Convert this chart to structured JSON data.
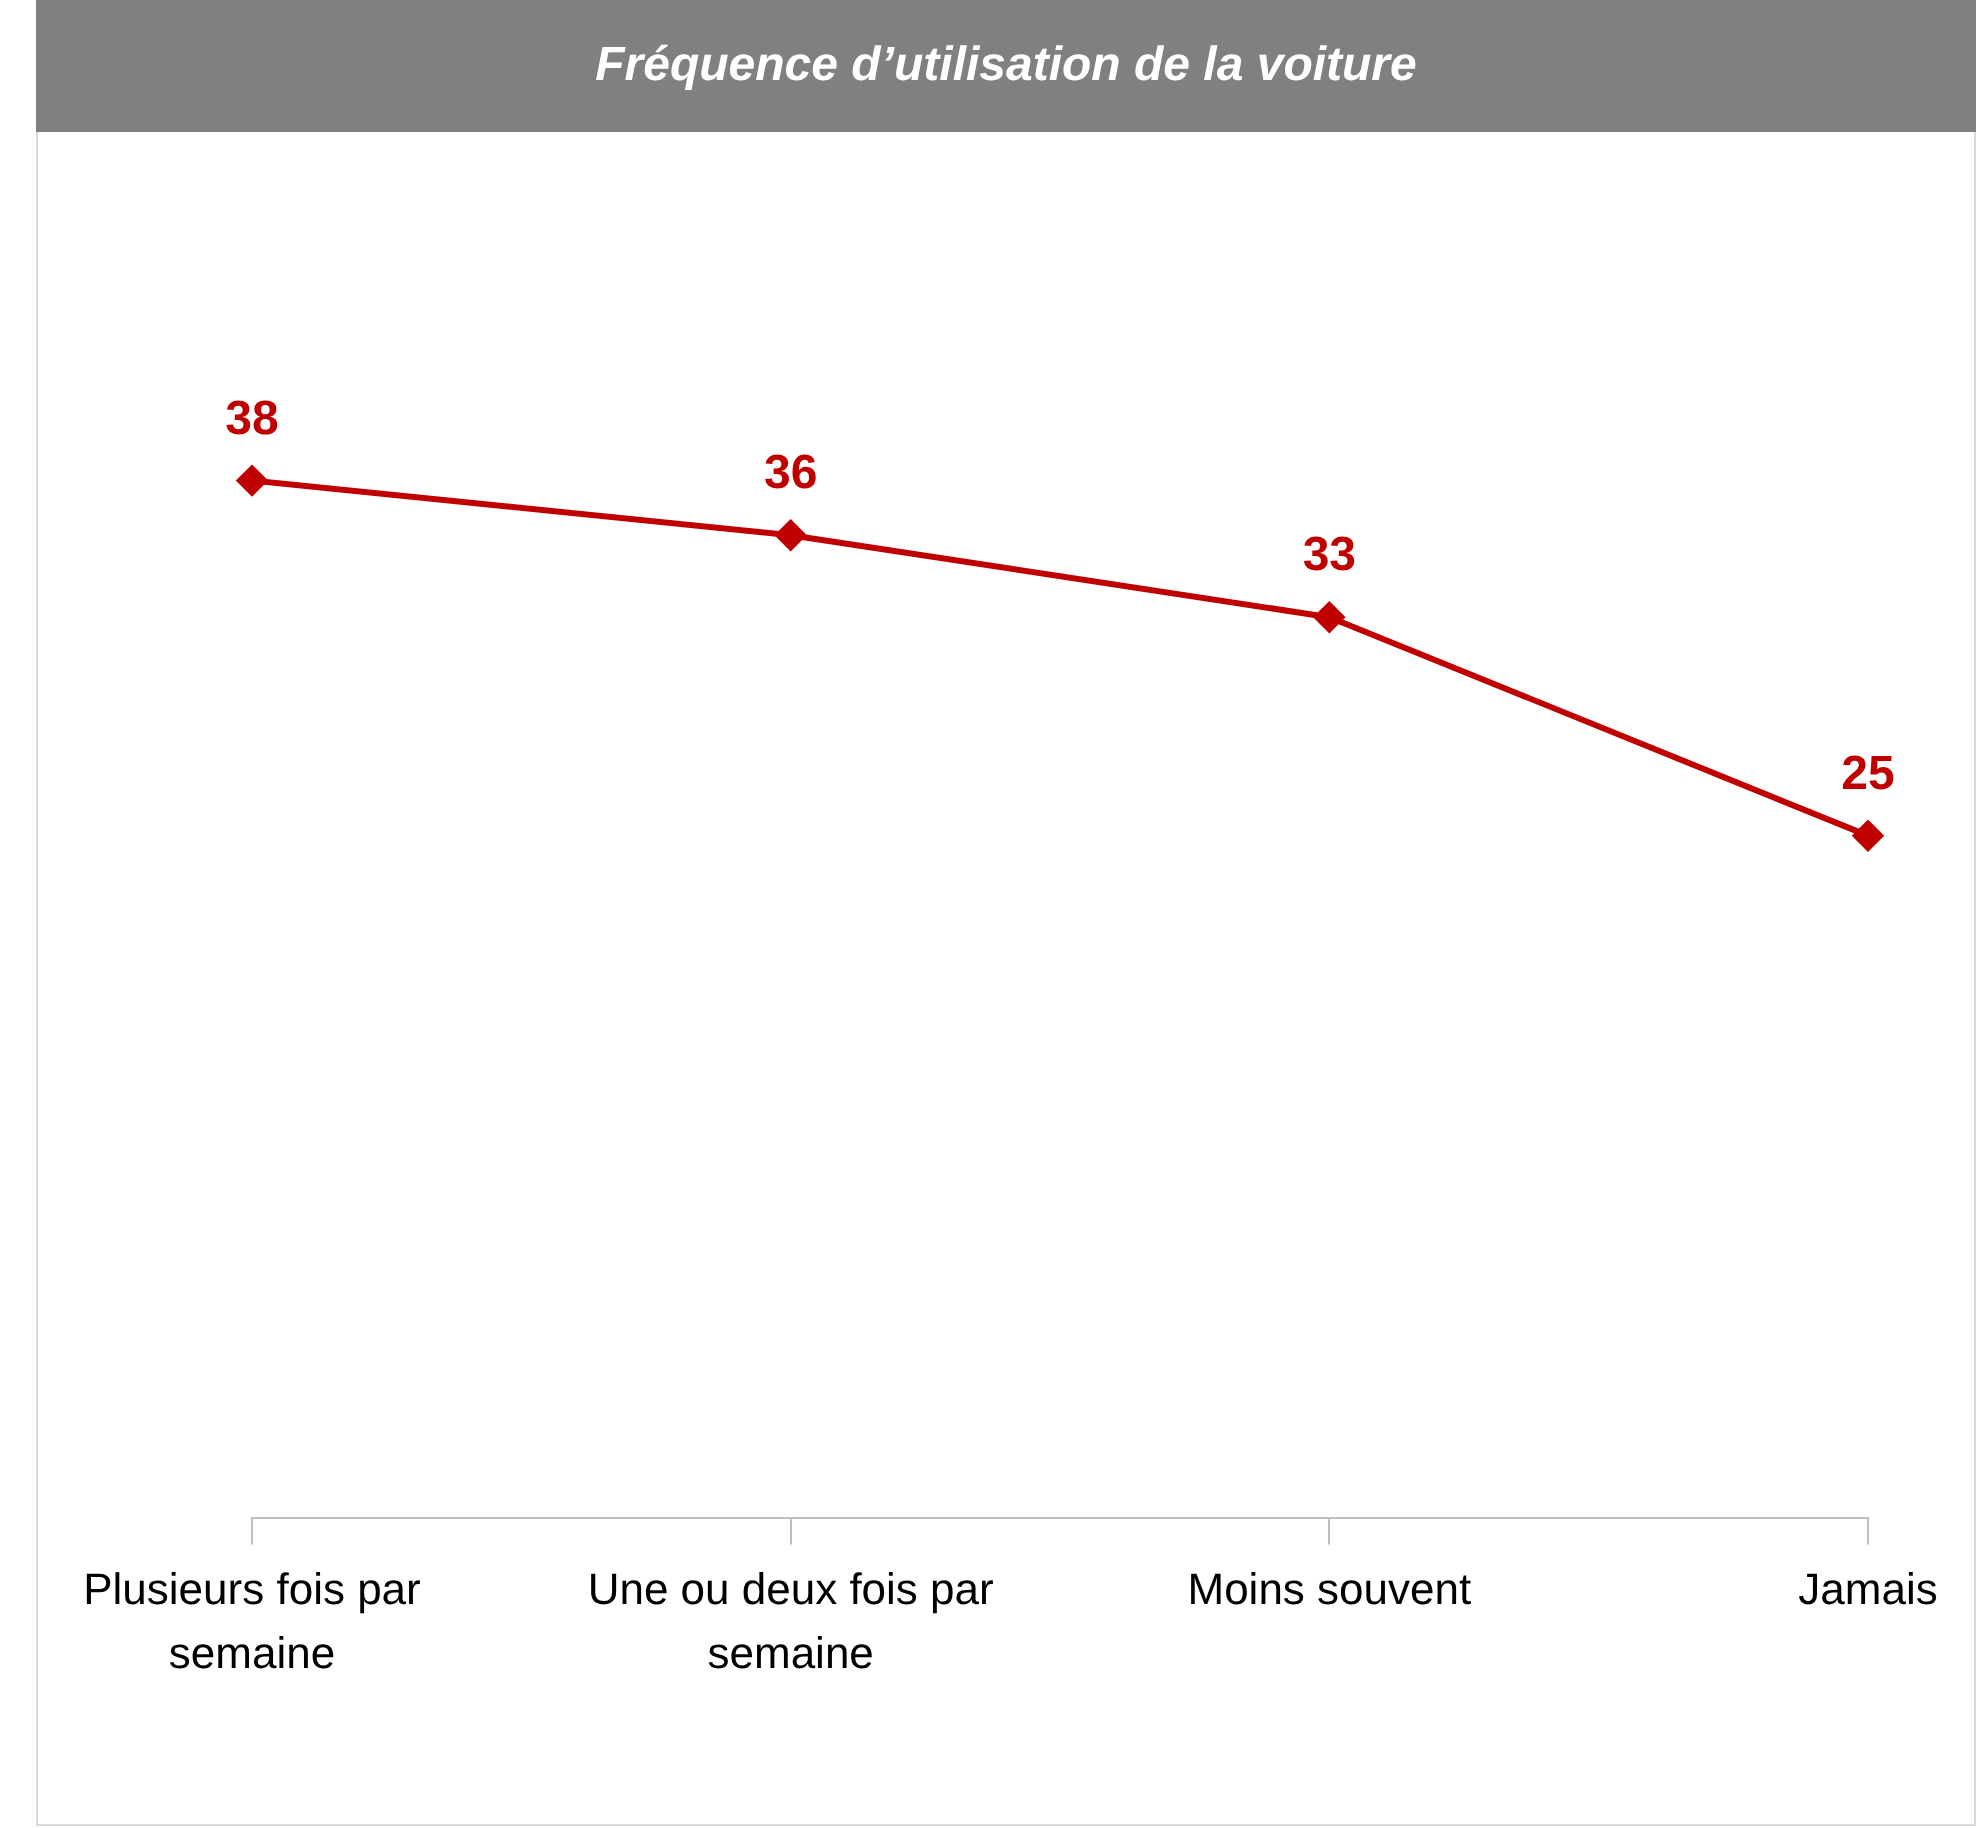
{
  "chart_data": {
    "type": "line",
    "title": "Fréquence d’utilisation de la voiture",
    "categories": [
      "Plusieurs fois par semaine",
      "Une ou deux fois par semaine",
      "Moins souvent",
      "Jamais"
    ],
    "values": [
      38,
      36,
      33,
      25
    ],
    "color": "#c00000",
    "marker": "diamond",
    "line_style": "solid",
    "tick_labels": "x",
    "data_labels": true,
    "grid": false,
    "legend": false
  }
}
